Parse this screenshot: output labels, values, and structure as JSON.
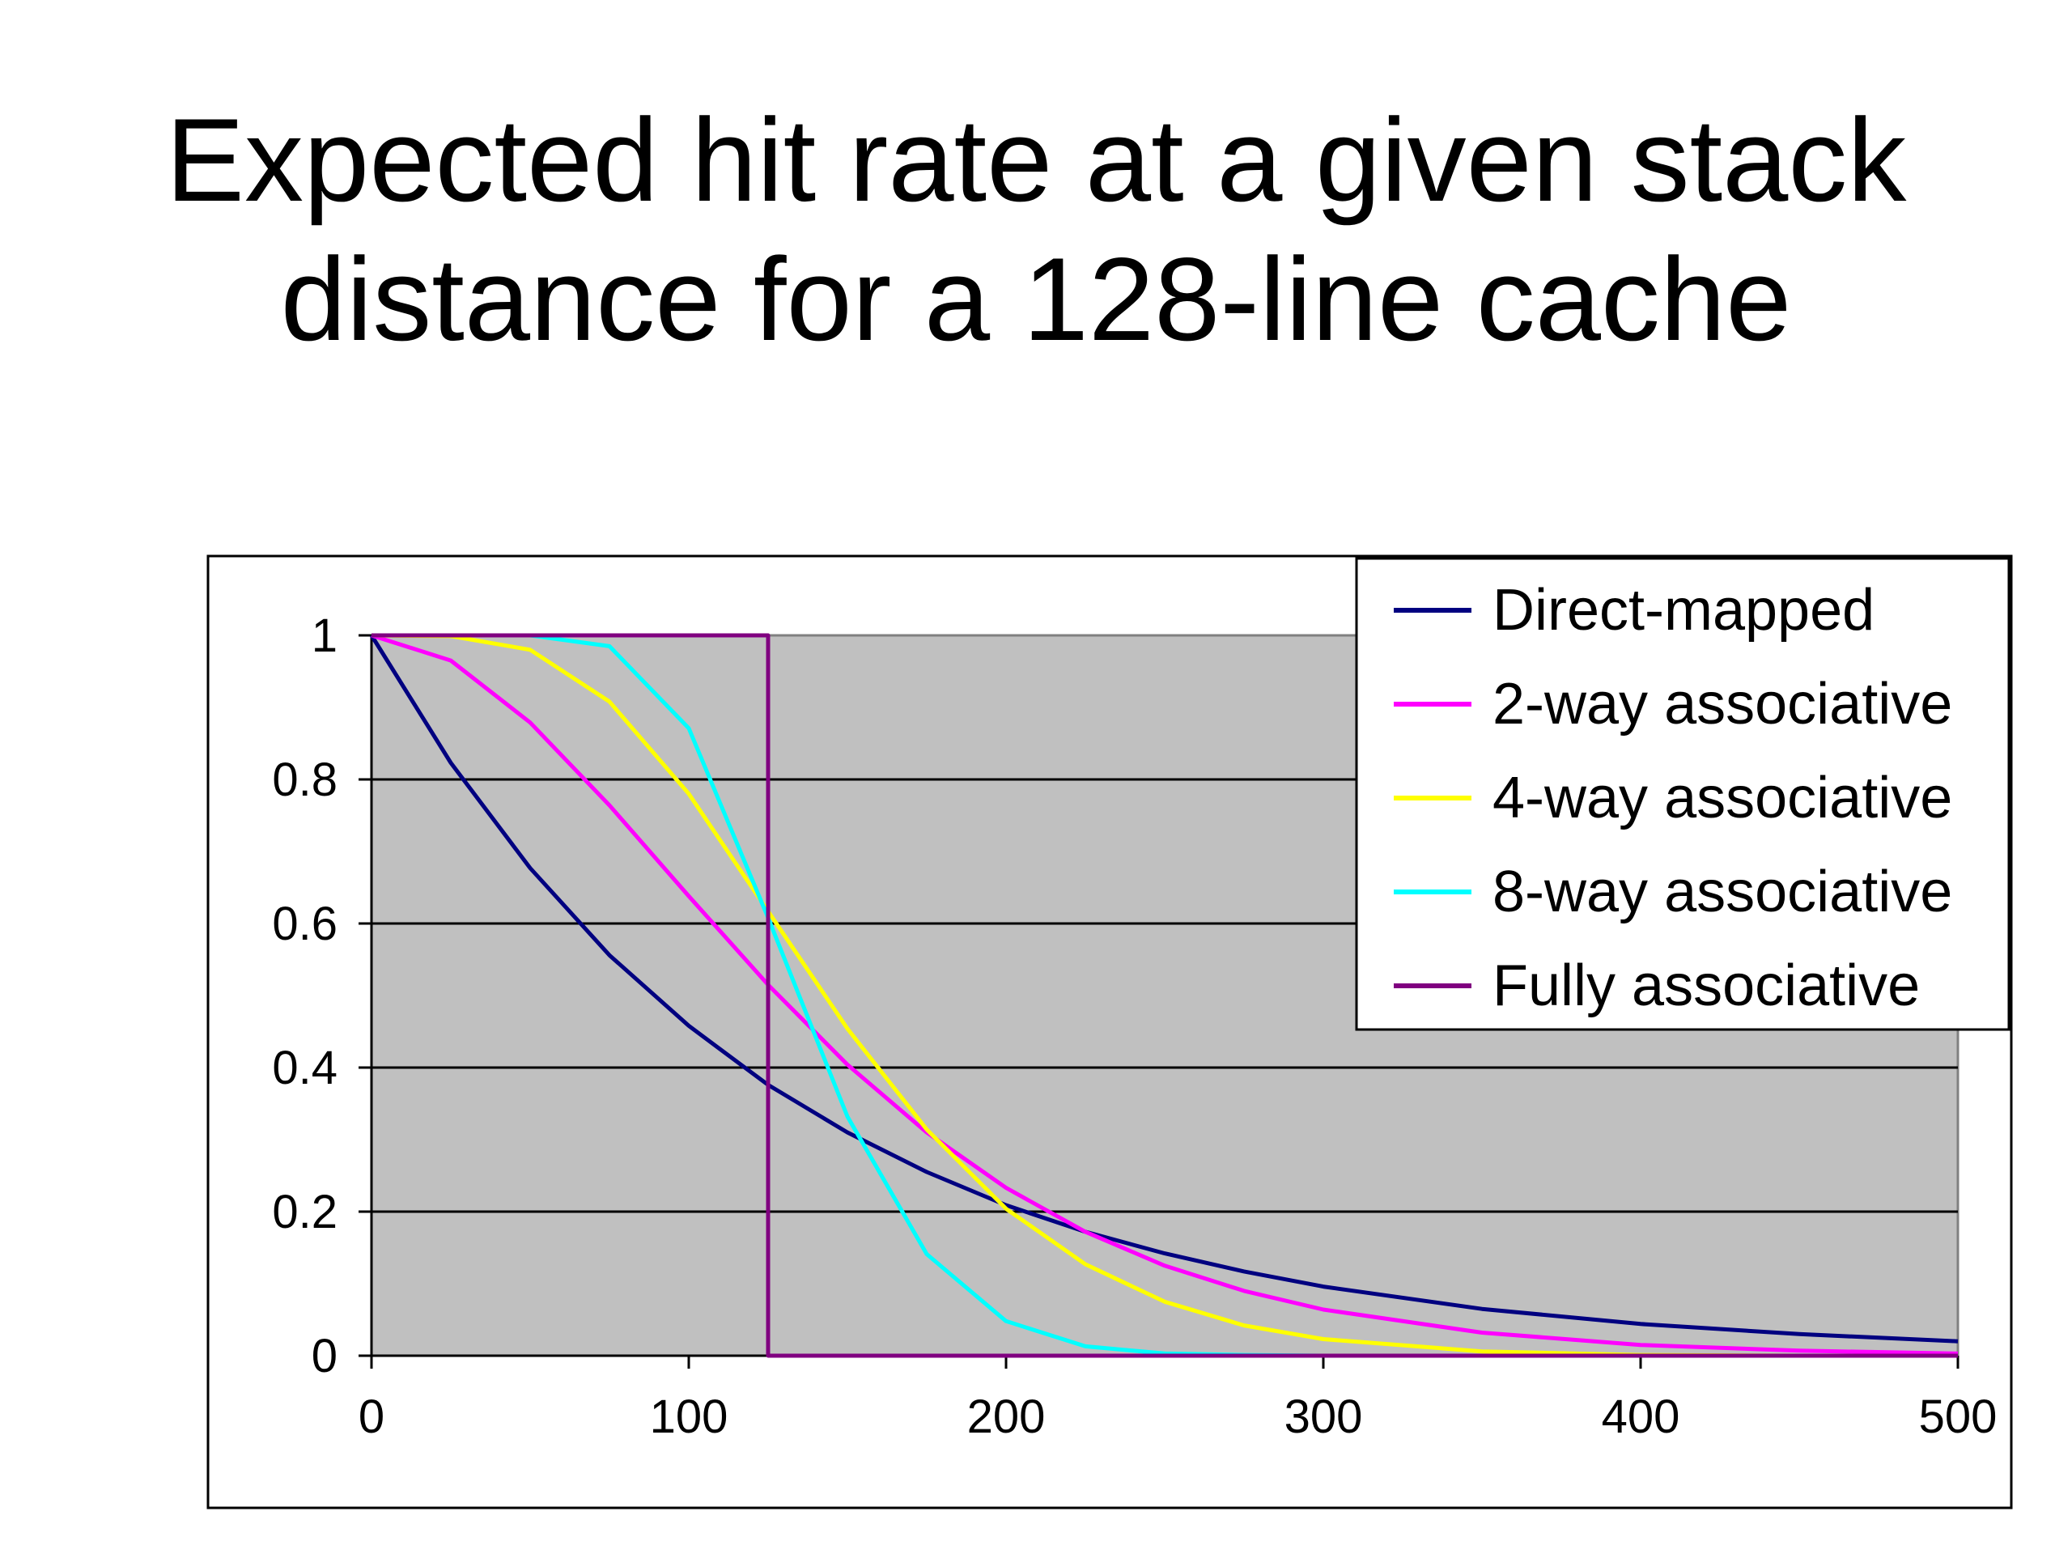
{
  "slide": {
    "title_line1": "Expected hit rate at a given stack",
    "title_line2": "distance for a 128-line cache"
  },
  "chart_data": {
    "type": "line",
    "title": "",
    "xlabel": "",
    "ylabel": "",
    "xlim": [
      0,
      500
    ],
    "ylim": [
      0,
      1
    ],
    "x_ticks": [
      "0",
      "100",
      "200",
      "300",
      "400",
      "500"
    ],
    "y_ticks": [
      "0",
      "0.2",
      "0.4",
      "0.6",
      "0.8",
      "1"
    ],
    "grid": true,
    "plot_background": "#c0c0c0",
    "legend_position": "top-right",
    "x": [
      0,
      25,
      50,
      75,
      100,
      125,
      150,
      175,
      200,
      225,
      250,
      275,
      300,
      350,
      400,
      450,
      500
    ],
    "series": [
      {
        "name": "Direct-mapped",
        "color": "#000080",
        "values": [
          1.0,
          0.823,
          0.677,
          0.556,
          0.458,
          0.376,
          0.31,
          0.255,
          0.209,
          0.172,
          0.142,
          0.117,
          0.096,
          0.065,
          0.044,
          0.03,
          0.02
        ]
      },
      {
        "name": "2-way associative",
        "color": "#ff00ff",
        "values": [
          1.0,
          0.965,
          0.879,
          0.764,
          0.638,
          0.515,
          0.404,
          0.31,
          0.233,
          0.172,
          0.125,
          0.09,
          0.064,
          0.032,
          0.015,
          0.007,
          0.003
        ]
      },
      {
        "name": "4-way associative",
        "color": "#ffff00",
        "values": [
          1.0,
          0.999,
          0.98,
          0.908,
          0.78,
          0.617,
          0.454,
          0.314,
          0.204,
          0.127,
          0.075,
          0.042,
          0.023,
          0.006,
          0.001,
          0.0,
          0.0
        ]
      },
      {
        "name": "8-way associative",
        "color": "#00ffff",
        "values": [
          1.0,
          1.0,
          1.0,
          0.985,
          0.871,
          0.608,
          0.332,
          0.141,
          0.048,
          0.013,
          0.003,
          0.001,
          0.0,
          0.0,
          0.0,
          0.0,
          0.0
        ]
      },
      {
        "name": "Fully associative",
        "color": "#800080",
        "step_at": 125,
        "values": [
          1,
          1,
          1,
          1,
          1,
          1,
          0,
          0,
          0,
          0,
          0,
          0,
          0,
          0,
          0,
          0,
          0
        ]
      }
    ]
  }
}
